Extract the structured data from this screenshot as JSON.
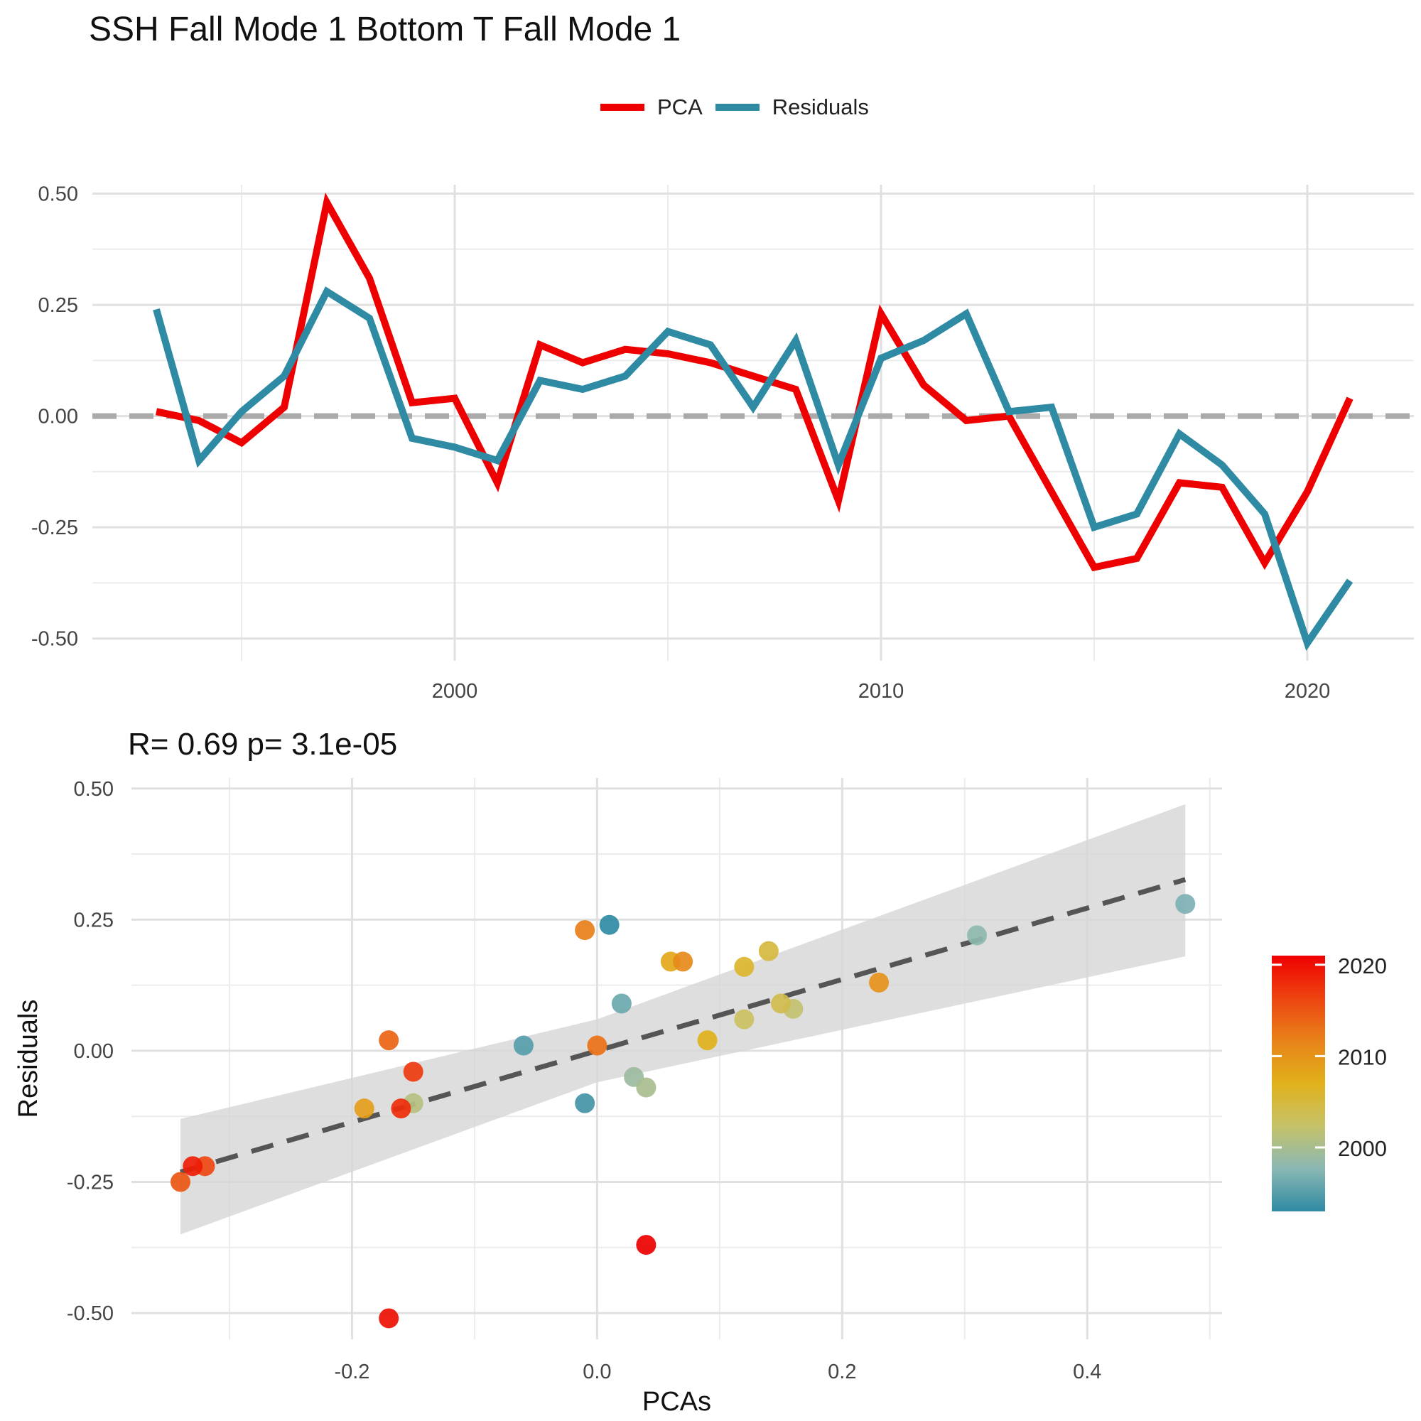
{
  "title": "SSH Fall Mode 1 Bottom T Fall Mode 1",
  "legend": {
    "items": [
      {
        "label": "PCA",
        "color": "#ee0000"
      },
      {
        "label": "Residuals",
        "color": "#2f8aa3"
      }
    ]
  },
  "chart_data": [
    {
      "type": "line",
      "title": "",
      "xlabel": "",
      "ylabel": "",
      "xlim": [
        1991.5,
        2022.5
      ],
      "ylim": [
        -0.55,
        0.52
      ],
      "x_ticks": [
        "2000",
        "2010",
        "2020"
      ],
      "y_ticks": [
        "0.50",
        "0.25",
        "0.00",
        "-0.25",
        "-0.50"
      ],
      "hline": {
        "y": 0,
        "style": "dashed",
        "color": "#aaaaaa"
      },
      "grid": true,
      "x": [
        1993,
        1994,
        1995,
        1996,
        1997,
        1998,
        1999,
        2000,
        2001,
        2002,
        2003,
        2004,
        2005,
        2006,
        2007,
        2008,
        2009,
        2010,
        2011,
        2012,
        2013,
        2014,
        2015,
        2016,
        2017,
        2018,
        2019,
        2020,
        2021
      ],
      "series": [
        {
          "name": "PCA",
          "color": "#ee0000",
          "values": [
            0.01,
            -0.01,
            -0.06,
            0.02,
            0.48,
            0.31,
            0.03,
            0.04,
            -0.15,
            0.16,
            0.12,
            0.15,
            0.14,
            0.12,
            0.09,
            0.06,
            -0.19,
            0.23,
            0.07,
            -0.01,
            0.0,
            -0.17,
            -0.34,
            -0.32,
            -0.15,
            -0.16,
            -0.33,
            -0.17,
            0.04
          ]
        },
        {
          "name": "Residuals",
          "color": "#2f8aa3",
          "values": [
            0.24,
            -0.1,
            0.01,
            0.09,
            0.28,
            0.22,
            -0.05,
            -0.07,
            -0.1,
            0.08,
            0.06,
            0.09,
            0.19,
            0.16,
            0.02,
            0.17,
            -0.11,
            0.13,
            0.17,
            0.23,
            0.01,
            0.02,
            -0.25,
            -0.22,
            -0.04,
            -0.11,
            -0.22,
            -0.51,
            -0.37
          ]
        }
      ]
    },
    {
      "type": "scatter",
      "title": "R= 0.69  p= 3.1e-05",
      "xlabel": "PCAs",
      "ylabel": "Residuals",
      "xlim": [
        -0.38,
        0.51
      ],
      "ylim": [
        -0.55,
        0.52
      ],
      "x_ticks": [
        "-0.2",
        "0.0",
        "0.2",
        "0.4"
      ],
      "y_ticks": [
        "0.50",
        "0.25",
        "0.00",
        "-0.25",
        "-0.50"
      ],
      "grid": true,
      "fit": {
        "style": "dashed",
        "color": "#555555",
        "intercept": 0.0,
        "slope": 0.68,
        "x_range": [
          -0.34,
          0.48
        ]
      },
      "confidence_band": {
        "color": "#d6d6d6",
        "upper": [
          [
            -0.34,
            -0.13
          ],
          [
            0.0,
            0.06
          ],
          [
            0.48,
            0.47
          ]
        ],
        "lower": [
          [
            -0.34,
            -0.35
          ],
          [
            0.0,
            -0.06
          ],
          [
            0.48,
            0.18
          ]
        ]
      },
      "colorbar": {
        "label_ticks": [
          "2020",
          "2010",
          "2000"
        ],
        "range": [
          1993,
          2021
        ],
        "colors": [
          "#2f8aa3",
          "#8ab8b4",
          "#c6c26a",
          "#e1b11b",
          "#e8831a",
          "#ee4410",
          "#ee0000"
        ]
      },
      "points": [
        {
          "x": 0.01,
          "y": 0.24,
          "year": 1993
        },
        {
          "x": -0.01,
          "y": -0.1,
          "year": 1994
        },
        {
          "x": -0.06,
          "y": 0.01,
          "year": 1995
        },
        {
          "x": 0.02,
          "y": 0.09,
          "year": 1996
        },
        {
          "x": 0.48,
          "y": 0.28,
          "year": 1997
        },
        {
          "x": 0.31,
          "y": 0.22,
          "year": 1998
        },
        {
          "x": 0.03,
          "y": -0.05,
          "year": 1999
        },
        {
          "x": 0.04,
          "y": -0.07,
          "year": 2000
        },
        {
          "x": -0.15,
          "y": -0.1,
          "year": 2001
        },
        {
          "x": 0.16,
          "y": 0.08,
          "year": 2002
        },
        {
          "x": 0.12,
          "y": 0.06,
          "year": 2003
        },
        {
          "x": 0.15,
          "y": 0.09,
          "year": 2004
        },
        {
          "x": 0.14,
          "y": 0.19,
          "year": 2005
        },
        {
          "x": 0.12,
          "y": 0.16,
          "year": 2006
        },
        {
          "x": 0.09,
          "y": 0.02,
          "year": 2007
        },
        {
          "x": 0.06,
          "y": 0.17,
          "year": 2008
        },
        {
          "x": -0.19,
          "y": -0.11,
          "year": 2009
        },
        {
          "x": 0.23,
          "y": 0.13,
          "year": 2010
        },
        {
          "x": 0.07,
          "y": 0.17,
          "year": 2011
        },
        {
          "x": -0.01,
          "y": 0.23,
          "year": 2012
        },
        {
          "x": 0.0,
          "y": 0.01,
          "year": 2013
        },
        {
          "x": -0.17,
          "y": 0.02,
          "year": 2014
        },
        {
          "x": -0.34,
          "y": -0.25,
          "year": 2015
        },
        {
          "x": -0.32,
          "y": -0.22,
          "year": 2016
        },
        {
          "x": -0.15,
          "y": -0.04,
          "year": 2017
        },
        {
          "x": -0.16,
          "y": -0.11,
          "year": 2018
        },
        {
          "x": -0.33,
          "y": -0.22,
          "year": 2019
        },
        {
          "x": -0.17,
          "y": -0.51,
          "year": 2020
        },
        {
          "x": 0.04,
          "y": -0.37,
          "year": 2021
        }
      ]
    }
  ]
}
